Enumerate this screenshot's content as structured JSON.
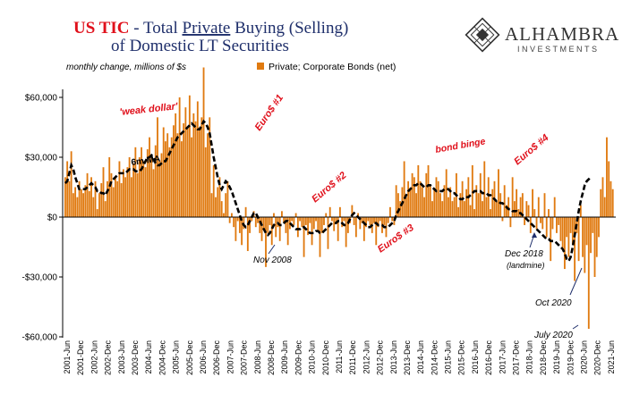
{
  "title": {
    "part1": "US TIC",
    "part2": " - Total ",
    "part3": "Private",
    "part4": " Buying (Selling)",
    "line2": "of Domestic LT Securities"
  },
  "logo": {
    "name": "ALHAMBRA",
    "sub": "INVESTMENTS"
  },
  "unit_note": "monthly change, millions of $s",
  "colors": {
    "bars": "#e07a10",
    "ma": "#000000",
    "title_red": "#e0101b",
    "title_blue": "#1f2f6b",
    "annotation_red": "#e0101b"
  },
  "chart_data": {
    "type": "bar",
    "legend_position": "top-center",
    "grid": false,
    "ylim": [
      -60000,
      80000
    ],
    "yticks": [
      {
        "value": 60000,
        "label": "$60,000"
      },
      {
        "value": 30000,
        "label": "$30,000"
      },
      {
        "value": 0,
        "label": "$0"
      },
      {
        "value": -30000,
        "label": "-$30,000"
      },
      {
        "value": -60000,
        "label": "-$60,000"
      }
    ],
    "x_tick_labels": [
      "2001-Jun",
      "2001-Dec",
      "2002-Jun",
      "2002-Dec",
      "2003-Jun",
      "2003-Dec",
      "2004-Jun",
      "2004-Dec",
      "2005-Jun",
      "2005-Dec",
      "2006-Jun",
      "2006-Dec",
      "2007-Jun",
      "2007-Dec",
      "2008-Jun",
      "2008-Dec",
      "2009-Jun",
      "2009-Dec",
      "2010-Jun",
      "2010-Dec",
      "2011-Jun",
      "2011-Dec",
      "2012-Jun",
      "2012-Dec",
      "2013-Jun",
      "2013-Dec",
      "2014-Jun",
      "2014-Dec",
      "2015-Jun",
      "2015-Dec",
      "2016-Jun",
      "2016-Dec",
      "2017-Jun",
      "2017-Dec",
      "2018-Jun",
      "2018-Dec",
      "2019-Jun",
      "2019-Dec",
      "2020-Jun",
      "2020-Dec",
      "2021-Jun"
    ],
    "series": [
      {
        "name": "Private; Corporate Bonds (net)",
        "values": [
          20000,
          28000,
          18000,
          33000,
          12000,
          15000,
          10000,
          18000,
          14000,
          12000,
          16000,
          22000,
          13000,
          20000,
          10000,
          18000,
          4000,
          12000,
          17000,
          25000,
          8000,
          18000,
          30000,
          22000,
          15000,
          20000,
          18000,
          28000,
          17000,
          24000,
          20000,
          25000,
          30000,
          20000,
          27000,
          35000,
          22000,
          30000,
          35000,
          28000,
          25000,
          34000,
          40000,
          30000,
          24000,
          36000,
          50000,
          28000,
          32000,
          45000,
          38000,
          42000,
          35000,
          40000,
          46000,
          52000,
          42000,
          60000,
          38000,
          47000,
          55000,
          45000,
          61000,
          40000,
          52000,
          48000,
          58000,
          45000,
          50000,
          75000,
          35000,
          42000,
          50000,
          12000,
          26000,
          10000,
          15000,
          20000,
          8000,
          2000,
          12000,
          18000,
          -3000,
          2000,
          -5000,
          -12000,
          -2000,
          -8000,
          -14000,
          -6000,
          5000,
          -17000,
          -8000,
          -2000,
          3000,
          -5000,
          -3000,
          -8000,
          -12000,
          -6000,
          -25000,
          -8000,
          -4000,
          -14000,
          2000,
          -10000,
          -5000,
          -12000,
          3000,
          -3000,
          -8000,
          -14000,
          -6000,
          -2000,
          -4000,
          2000,
          -10000,
          -2000,
          -5000,
          -20000,
          -4000,
          -9000,
          -3000,
          -14000,
          -6000,
          -2000,
          -7000,
          -20000,
          -8000,
          -4000,
          2000,
          -16000,
          5000,
          -2000,
          -7000,
          -3000,
          -12000,
          5000,
          -5000,
          -2000,
          -15000,
          -8000,
          -3000,
          6000,
          -4000,
          -10000,
          2000,
          -6000,
          -3000,
          -12000,
          -5000,
          -2000,
          -4000,
          -8000,
          -3000,
          -14000,
          -5000,
          -2000,
          -8000,
          -4000,
          -10000,
          -3000,
          5000,
          -2000,
          -4000,
          16000,
          12000,
          8000,
          15000,
          28000,
          10000,
          18000,
          14000,
          22000,
          20000,
          12000,
          26000,
          18000,
          15000,
          10000,
          22000,
          26000,
          16000,
          8000,
          14000,
          20000,
          18000,
          12000,
          8000,
          16000,
          24000,
          10000,
          15000,
          8000,
          10000,
          22000,
          5000,
          12000,
          18000,
          8000,
          14000,
          20000,
          6000,
          26000,
          4000,
          16000,
          12000,
          22000,
          8000,
          28000,
          10000,
          20000,
          4000,
          14000,
          18000,
          8000,
          24000,
          12000,
          -2000,
          16000,
          6000,
          10000,
          -5000,
          20000,
          8000,
          14000,
          4000,
          10000,
          12000,
          -4000,
          8000,
          6000,
          -8000,
          14000,
          4000,
          -6000,
          10000,
          -3000,
          -6000,
          12000,
          -10000,
          4000,
          -22000,
          -6000,
          10000,
          -8000,
          -4000,
          -12000,
          -16000,
          -26000,
          -10000,
          -20000,
          -8000,
          -14000,
          -32000,
          -8000,
          -22000,
          6000,
          -20000,
          -28000,
          -14000,
          -56000,
          -18000,
          -8000,
          -30000,
          -20000,
          -10000,
          14000,
          20000,
          10000,
          40000,
          28000,
          18000,
          14000
        ]
      },
      {
        "name": "6m MA",
        "values": [
          17000,
          18000,
          22000,
          26000,
          24000,
          20000,
          17000,
          14000,
          14000,
          14000,
          14000,
          15000,
          16000,
          17000,
          16000,
          15000,
          13000,
          13000,
          12000,
          12000,
          11000,
          13000,
          15000,
          18000,
          19000,
          20000,
          21000,
          22000,
          22000,
          22000,
          22000,
          23000,
          24000,
          24000,
          24000,
          23000,
          23000,
          23000,
          24000,
          26000,
          28000,
          30000,
          30000,
          31000,
          30000,
          27000,
          26000,
          26000,
          27000,
          28000,
          28000,
          30000,
          32000,
          34000,
          36000,
          38000,
          40000,
          41000,
          42000,
          43000,
          44000,
          45000,
          46000,
          47000,
          46000,
          45000,
          44000,
          44000,
          46000,
          48000,
          47000,
          45000,
          42000,
          36000,
          30000,
          25000,
          20000,
          16000,
          14000,
          16000,
          18000,
          17000,
          15000,
          13000,
          10000,
          7000,
          4000,
          1000,
          -2000,
          -4000,
          -5000,
          -4000,
          -2000,
          0,
          2000,
          2000,
          0,
          -2000,
          -4000,
          -6000,
          -8000,
          -9000,
          -8000,
          -6000,
          -4000,
          -3000,
          -3000,
          -4000,
          -4000,
          -3000,
          -2000,
          -2000,
          -3000,
          -4000,
          -5000,
          -6000,
          -6000,
          -6000,
          -5000,
          -5000,
          -6000,
          -7000,
          -8000,
          -8000,
          -8000,
          -7000,
          -7000,
          -8000,
          -8000,
          -7000,
          -6000,
          -5000,
          -4000,
          -3000,
          -3000,
          -3000,
          -2000,
          -2000,
          -3000,
          -4000,
          -4000,
          -3000,
          -1000,
          1000,
          2000,
          1000,
          0,
          -1000,
          -2000,
          -3000,
          -4000,
          -5000,
          -5000,
          -4000,
          -3000,
          -3000,
          -4000,
          -4000,
          -4000,
          -5000,
          -5000,
          -5000,
          -4000,
          -3000,
          -2000,
          1000,
          3000,
          5000,
          7000,
          9000,
          11000,
          13000,
          14000,
          15000,
          16000,
          16000,
          17000,
          17000,
          16000,
          15000,
          15000,
          16000,
          16000,
          15000,
          14000,
          13000,
          13000,
          13000,
          13000,
          14000,
          14000,
          14000,
          13000,
          12000,
          12000,
          11000,
          10000,
          9000,
          9000,
          10000,
          10000,
          10000,
          11000,
          12000,
          13000,
          13000,
          13000,
          13000,
          12000,
          12000,
          12000,
          11000,
          11000,
          10000,
          9000,
          8000,
          8000,
          7000,
          7000,
          6000,
          5000,
          4000,
          4000,
          3000,
          3000,
          3000,
          2000,
          2000,
          1000,
          0,
          -1000,
          -2000,
          -3000,
          -4000,
          -5000,
          -6000,
          -7000,
          -8000,
          -9000,
          -10000,
          -11000,
          -11000,
          -12000,
          -12000,
          -12000,
          -13000,
          -14000,
          -15000,
          -16000,
          -18000,
          -21000,
          -22000,
          -20000,
          -15000,
          -9000,
          -3000,
          3000,
          8000,
          12000,
          16000,
          18000,
          19000,
          20000
        ]
      }
    ]
  },
  "annotations": {
    "weak_dollar": "'weak dollar'",
    "ma_label": "6m MA",
    "euro1": "Euro$ #1",
    "euro2": "Euro$ #2",
    "euro3": "Euro$ #3",
    "euro4": "Euro$ #4",
    "bond_binge": "bond binge",
    "nov2008": "Nov 2008",
    "dec2018": "Dec 2018",
    "landmine": "(landmine)",
    "oct2020": "Oct 2020",
    "july2020": "July 2020"
  }
}
